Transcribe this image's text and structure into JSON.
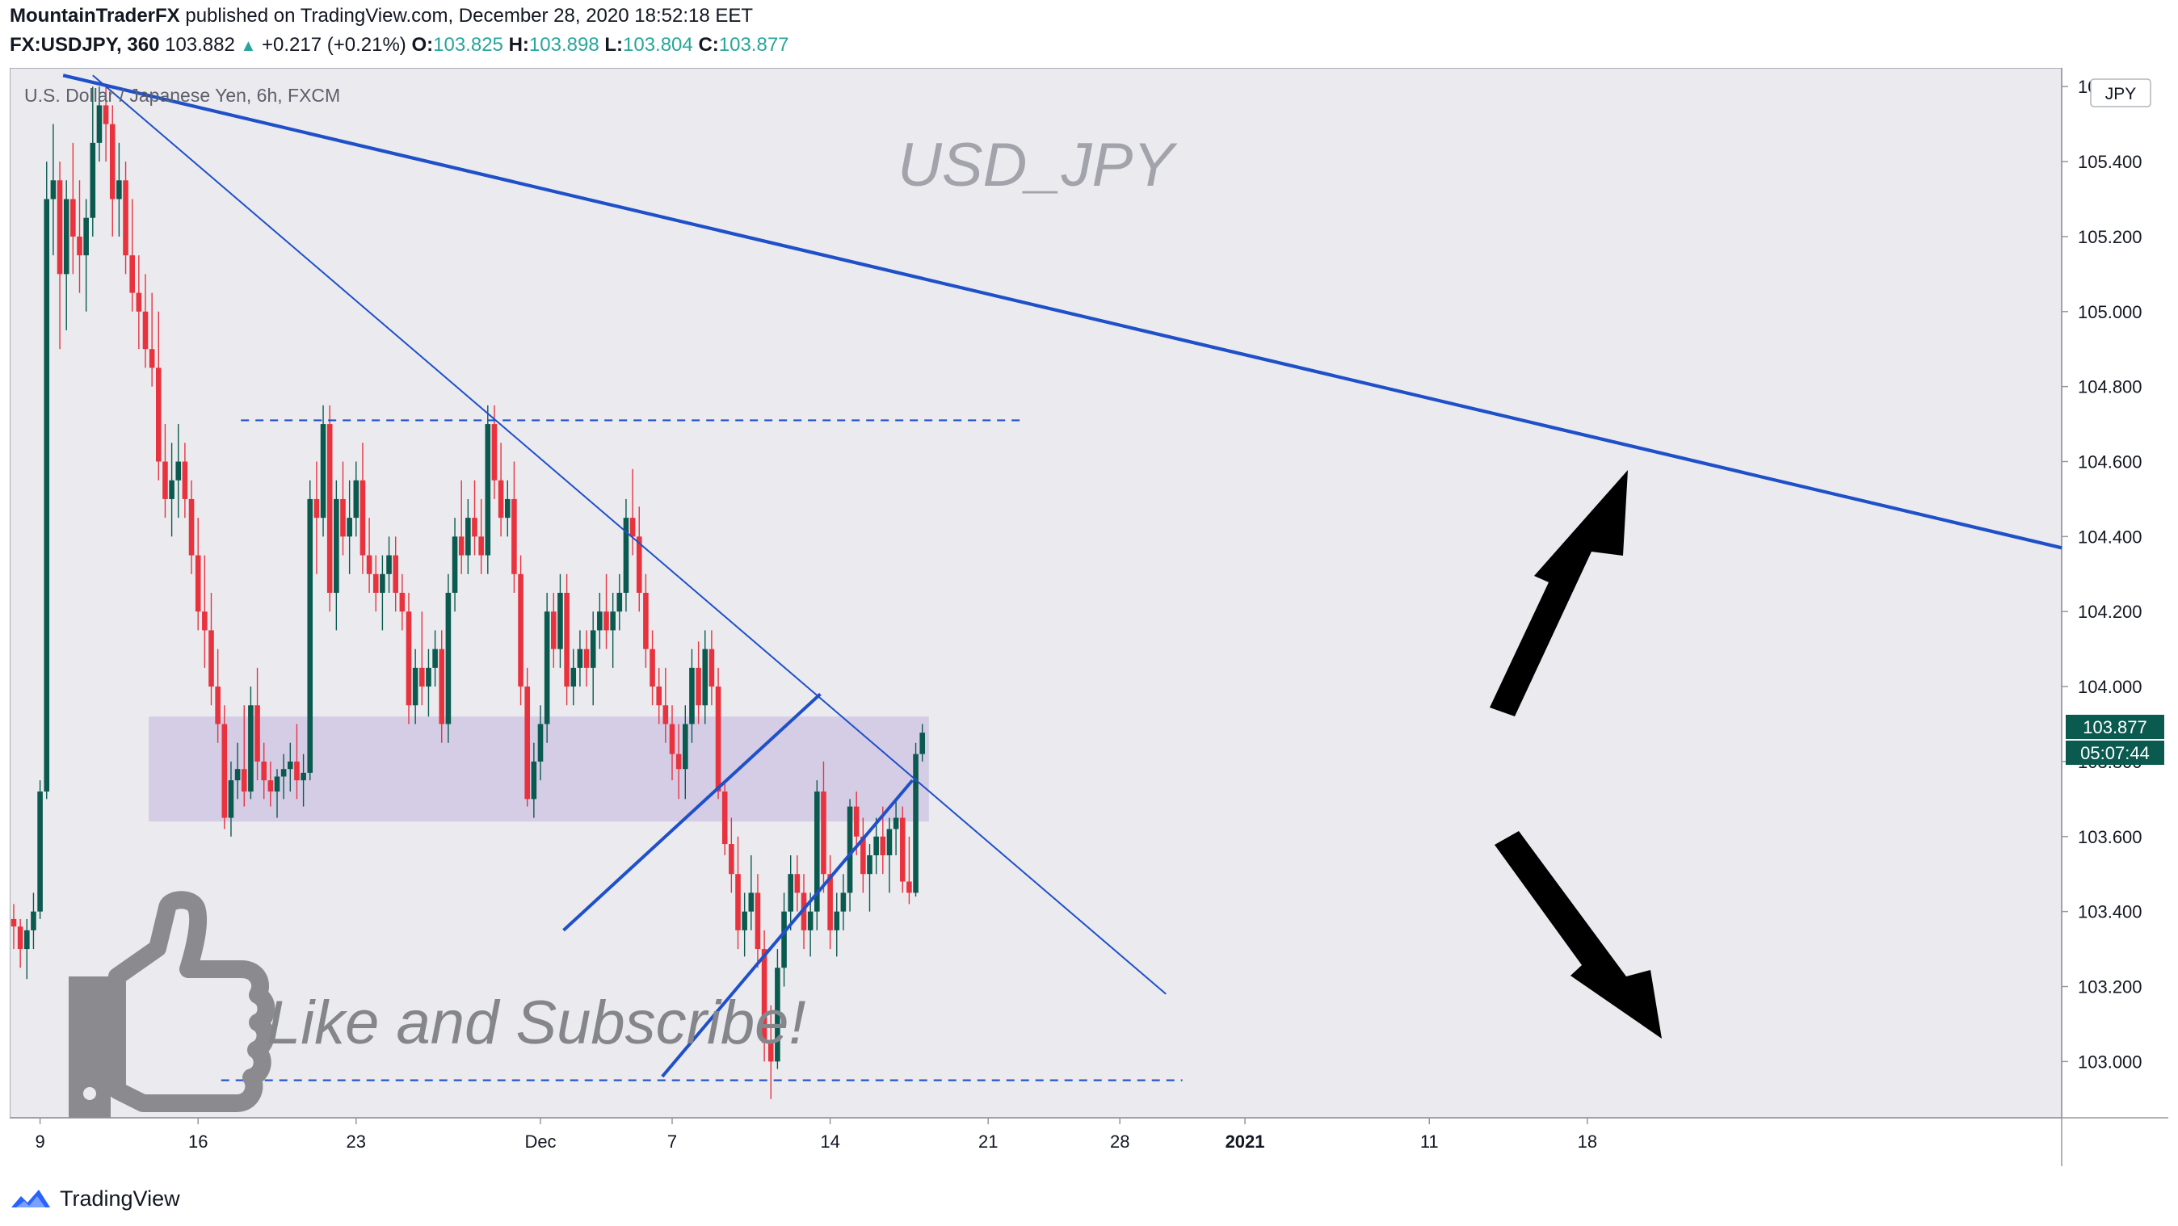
{
  "header": {
    "publisher": "MountainTraderFX",
    "published_text": "published on TradingView.com, December 28, 2020 18:52:18 EET",
    "symbol_line": {
      "symbol": "FX:USDJPY, 360",
      "last": "103.882",
      "arrow": "▲",
      "change": "+0.217 (+0.21%)",
      "o_label": "O:",
      "o_val": "103.825",
      "h_label": "H:",
      "h_val": "103.898",
      "l_label": "L:",
      "l_val": "103.804",
      "c_label": "C:",
      "c_val": "103.877"
    }
  },
  "chart_data": {
    "type": "candlestick",
    "title": "U.S. Dollar / Japanese Yen, 6h, FXCM",
    "watermark": "USD_JPY",
    "currency_button": "JPY",
    "price_label": "103.877",
    "countdown_label": "05:07:44",
    "ylim": [
      102.85,
      105.65
    ],
    "y_ticks": [
      "105.600",
      "105.400",
      "105.200",
      "105.000",
      "104.800",
      "104.600",
      "104.400",
      "104.200",
      "104.000",
      "103.800",
      "103.600",
      "103.400",
      "103.200",
      "103.000"
    ],
    "x_ticks": [
      {
        "label": "9",
        "bar": 4
      },
      {
        "label": "16",
        "bar": 28
      },
      {
        "label": "23",
        "bar": 52
      },
      {
        "label": "Dec",
        "bar": 80
      },
      {
        "label": "7",
        "bar": 100
      },
      {
        "label": "14",
        "bar": 124
      },
      {
        "label": "21",
        "bar": 148
      },
      {
        "label": "28",
        "bar": 168
      },
      {
        "label": "2021",
        "bar": 187
      },
      {
        "label": "11",
        "bar": 215
      },
      {
        "label": "18",
        "bar": 239
      }
    ],
    "colors": {
      "up": "#0b5a4f",
      "down": "#e8333f",
      "line": "#1f50c8",
      "zone": "#cfc6e4",
      "bg": "#ebebef"
    },
    "support_zone": [
      103.64,
      103.92
    ],
    "resistance_level": 104.71,
    "support_level": 102.95,
    "candles": [
      [
        103.38,
        103.42,
        103.3,
        103.36
      ],
      [
        103.36,
        103.38,
        103.25,
        103.3
      ],
      [
        103.3,
        103.38,
        103.22,
        103.35
      ],
      [
        103.35,
        103.45,
        103.3,
        103.4
      ],
      [
        103.4,
        103.75,
        103.38,
        103.72
      ],
      [
        103.72,
        105.4,
        103.7,
        105.3
      ],
      [
        105.3,
        105.5,
        105.15,
        105.35
      ],
      [
        105.35,
        105.4,
        104.9,
        105.1
      ],
      [
        105.1,
        105.35,
        104.95,
        105.3
      ],
      [
        105.3,
        105.45,
        105.1,
        105.2
      ],
      [
        105.2,
        105.35,
        105.05,
        105.15
      ],
      [
        105.15,
        105.3,
        105.0,
        105.25
      ],
      [
        105.25,
        105.6,
        105.2,
        105.45
      ],
      [
        105.45,
        105.6,
        105.4,
        105.55
      ],
      [
        105.55,
        105.6,
        105.4,
        105.5
      ],
      [
        105.5,
        105.55,
        105.2,
        105.3
      ],
      [
        105.3,
        105.45,
        105.2,
        105.35
      ],
      [
        105.35,
        105.4,
        105.1,
        105.15
      ],
      [
        105.15,
        105.3,
        105.0,
        105.05
      ],
      [
        105.05,
        105.15,
        104.9,
        105.0
      ],
      [
        105.0,
        105.1,
        104.85,
        104.9
      ],
      [
        104.9,
        105.05,
        104.8,
        104.85
      ],
      [
        104.85,
        105.0,
        104.55,
        104.6
      ],
      [
        104.6,
        104.7,
        104.45,
        104.5
      ],
      [
        104.5,
        104.65,
        104.4,
        104.55
      ],
      [
        104.55,
        104.7,
        104.45,
        104.6
      ],
      [
        104.6,
        104.65,
        104.45,
        104.5
      ],
      [
        104.5,
        104.55,
        104.3,
        104.35
      ],
      [
        104.35,
        104.45,
        104.15,
        104.2
      ],
      [
        104.2,
        104.35,
        104.05,
        104.15
      ],
      [
        104.15,
        104.25,
        103.95,
        104.0
      ],
      [
        104.0,
        104.1,
        103.85,
        103.9
      ],
      [
        103.9,
        103.95,
        103.62,
        103.65
      ],
      [
        103.65,
        103.8,
        103.6,
        103.75
      ],
      [
        103.75,
        103.85,
        103.7,
        103.78
      ],
      [
        103.78,
        103.95,
        103.68,
        103.72
      ],
      [
        103.72,
        104.0,
        103.7,
        103.95
      ],
      [
        103.95,
        104.05,
        103.75,
        103.8
      ],
      [
        103.8,
        103.85,
        103.7,
        103.75
      ],
      [
        103.75,
        103.8,
        103.68,
        103.72
      ],
      [
        103.72,
        103.78,
        103.65,
        103.76
      ],
      [
        103.76,
        103.82,
        103.7,
        103.78
      ],
      [
        103.78,
        103.85,
        103.72,
        103.8
      ],
      [
        103.8,
        103.9,
        103.7,
        103.75
      ],
      [
        103.75,
        103.82,
        103.68,
        103.77
      ],
      [
        103.77,
        104.55,
        103.75,
        104.5
      ],
      [
        104.5,
        104.6,
        104.3,
        104.45
      ],
      [
        104.45,
        104.75,
        104.4,
        104.7
      ],
      [
        104.7,
        104.75,
        104.2,
        104.25
      ],
      [
        104.25,
        104.55,
        104.15,
        104.5
      ],
      [
        104.5,
        104.6,
        104.35,
        104.4
      ],
      [
        104.4,
        104.55,
        104.3,
        104.45
      ],
      [
        104.45,
        104.6,
        104.4,
        104.55
      ],
      [
        104.55,
        104.65,
        104.3,
        104.35
      ],
      [
        104.35,
        104.45,
        104.25,
        104.3
      ],
      [
        104.3,
        104.35,
        104.2,
        104.25
      ],
      [
        104.25,
        104.35,
        104.15,
        104.3
      ],
      [
        104.3,
        104.4,
        104.25,
        104.35
      ],
      [
        104.35,
        104.4,
        104.2,
        104.25
      ],
      [
        104.25,
        104.3,
        104.15,
        104.2
      ],
      [
        104.2,
        104.25,
        103.9,
        103.95
      ],
      [
        103.95,
        104.1,
        103.9,
        104.05
      ],
      [
        104.05,
        104.2,
        103.95,
        104.0
      ],
      [
        104.0,
        104.1,
        103.92,
        104.05
      ],
      [
        104.05,
        104.15,
        104.0,
        104.1
      ],
      [
        104.1,
        104.15,
        103.85,
        103.9
      ],
      [
        103.9,
        104.3,
        103.85,
        104.25
      ],
      [
        104.25,
        104.45,
        104.2,
        104.4
      ],
      [
        104.4,
        104.55,
        104.3,
        104.35
      ],
      [
        104.35,
        104.5,
        104.3,
        104.45
      ],
      [
        104.45,
        104.55,
        104.35,
        104.4
      ],
      [
        104.4,
        104.5,
        104.3,
        104.35
      ],
      [
        104.35,
        104.75,
        104.3,
        104.7
      ],
      [
        104.7,
        104.75,
        104.5,
        104.55
      ],
      [
        104.55,
        104.65,
        104.4,
        104.45
      ],
      [
        104.45,
        104.55,
        104.4,
        104.5
      ],
      [
        104.5,
        104.6,
        104.25,
        104.3
      ],
      [
        104.3,
        104.35,
        103.95,
        104.0
      ],
      [
        104.0,
        104.05,
        103.68,
        103.7
      ],
      [
        103.7,
        103.85,
        103.65,
        103.8
      ],
      [
        103.8,
        103.95,
        103.75,
        103.9
      ],
      [
        103.9,
        104.25,
        103.85,
        104.2
      ],
      [
        104.2,
        104.25,
        104.05,
        104.1
      ],
      [
        104.1,
        104.3,
        104.05,
        104.25
      ],
      [
        104.25,
        104.3,
        103.95,
        104.0
      ],
      [
        104.0,
        104.1,
        103.95,
        104.05
      ],
      [
        104.05,
        104.15,
        104.0,
        104.1
      ],
      [
        104.1,
        104.15,
        104.0,
        104.05
      ],
      [
        104.05,
        104.2,
        103.95,
        104.15
      ],
      [
        104.15,
        104.25,
        104.1,
        104.2
      ],
      [
        104.2,
        104.3,
        104.1,
        104.15
      ],
      [
        104.15,
        104.25,
        104.05,
        104.2
      ],
      [
        104.2,
        104.3,
        104.15,
        104.25
      ],
      [
        104.25,
        104.5,
        104.2,
        104.45
      ],
      [
        104.45,
        104.58,
        104.35,
        104.4
      ],
      [
        104.4,
        104.48,
        104.2,
        104.25
      ],
      [
        104.25,
        104.3,
        104.05,
        104.1
      ],
      [
        104.1,
        104.15,
        103.95,
        104.0
      ],
      [
        104.0,
        104.05,
        103.9,
        103.95
      ],
      [
        103.95,
        104.05,
        103.85,
        103.9
      ],
      [
        103.9,
        103.95,
        103.75,
        103.82
      ],
      [
        103.82,
        103.9,
        103.7,
        103.78
      ],
      [
        103.78,
        103.95,
        103.7,
        103.9
      ],
      [
        103.9,
        104.1,
        103.85,
        104.05
      ],
      [
        104.05,
        104.12,
        103.9,
        103.95
      ],
      [
        103.95,
        104.15,
        103.9,
        104.1
      ],
      [
        104.1,
        104.15,
        103.95,
        104.0
      ],
      [
        104.0,
        104.05,
        103.7,
        103.72
      ],
      [
        103.72,
        103.75,
        103.55,
        103.58
      ],
      [
        103.58,
        103.65,
        103.45,
        103.5
      ],
      [
        103.5,
        103.6,
        103.3,
        103.35
      ],
      [
        103.35,
        103.45,
        103.28,
        103.4
      ],
      [
        103.4,
        103.55,
        103.35,
        103.45
      ],
      [
        103.45,
        103.5,
        103.25,
        103.3
      ],
      [
        103.3,
        103.35,
        103.0,
        103.05
      ],
      [
        103.05,
        103.15,
        102.9,
        103.0
      ],
      [
        103.0,
        103.3,
        102.98,
        103.25
      ],
      [
        103.25,
        103.45,
        103.2,
        103.4
      ],
      [
        103.4,
        103.55,
        103.35,
        103.5
      ],
      [
        103.5,
        103.55,
        103.4,
        103.45
      ],
      [
        103.45,
        103.5,
        103.3,
        103.35
      ],
      [
        103.35,
        103.45,
        103.28,
        103.4
      ],
      [
        103.4,
        103.75,
        103.35,
        103.72
      ],
      [
        103.72,
        103.8,
        103.45,
        103.5
      ],
      [
        103.5,
        103.55,
        103.3,
        103.35
      ],
      [
        103.35,
        103.45,
        103.28,
        103.4
      ],
      [
        103.4,
        103.5,
        103.35,
        103.45
      ],
      [
        103.45,
        103.7,
        103.4,
        103.68
      ],
      [
        103.68,
        103.72,
        103.55,
        103.6
      ],
      [
        103.6,
        103.65,
        103.45,
        103.5
      ],
      [
        103.5,
        103.58,
        103.4,
        103.55
      ],
      [
        103.55,
        103.65,
        103.5,
        103.6
      ],
      [
        103.6,
        103.68,
        103.5,
        103.55
      ],
      [
        103.55,
        103.65,
        103.45,
        103.62
      ],
      [
        103.62,
        103.7,
        103.55,
        103.65
      ],
      [
        103.65,
        103.68,
        103.45,
        103.48
      ],
      [
        103.48,
        103.6,
        103.42,
        103.45
      ],
      [
        103.45,
        103.85,
        103.44,
        103.82
      ],
      [
        103.82,
        103.9,
        103.8,
        103.877
      ]
    ]
  }
}
